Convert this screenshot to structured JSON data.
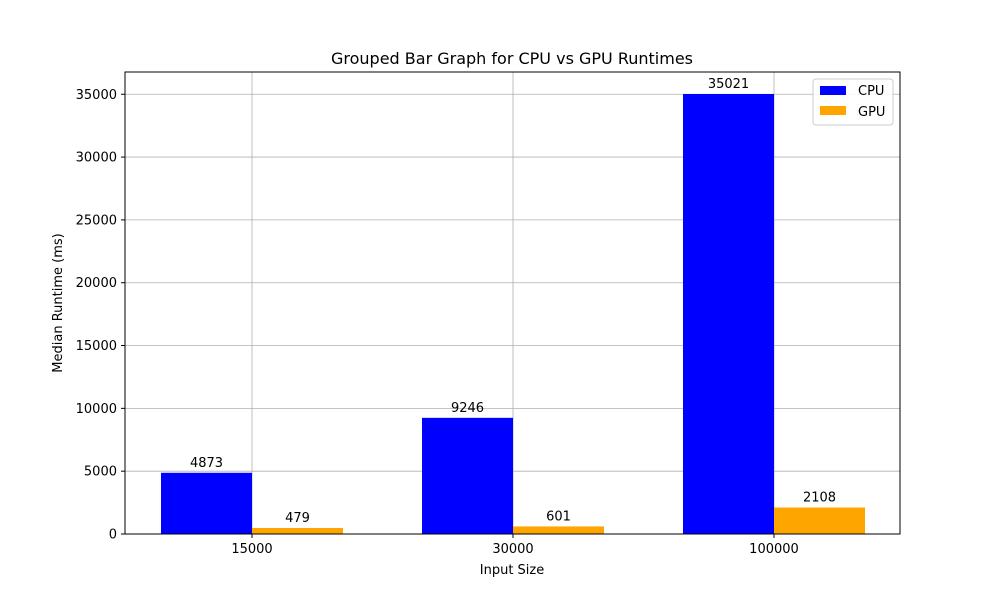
{
  "chart_data": {
    "type": "bar",
    "title": "Grouped Bar Graph for CPU vs GPU Runtimes",
    "xlabel": "Input Size",
    "ylabel": "Median Runtime (ms)",
    "categories": [
      "15000",
      "30000",
      "100000"
    ],
    "series": [
      {
        "name": "CPU",
        "values": [
          4873,
          9246,
          35021
        ],
        "color": "#0000ff"
      },
      {
        "name": "GPU",
        "values": [
          479,
          601,
          2108
        ],
        "color": "#ffa500"
      }
    ],
    "ylim": [
      0,
      36771
    ],
    "yticks": [
      0,
      5000,
      10000,
      15000,
      20000,
      25000,
      30000,
      35000
    ],
    "grid": true,
    "legend_position": "top-right"
  }
}
